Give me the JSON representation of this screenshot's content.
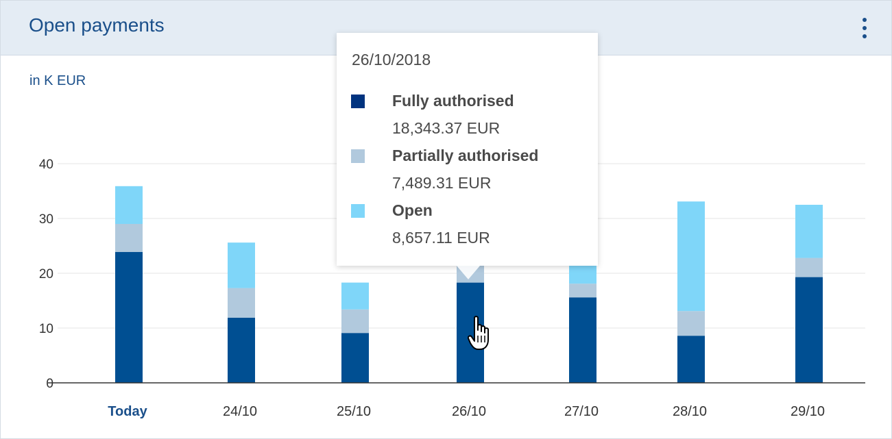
{
  "header": {
    "title": "Open payments",
    "menu_icon": "more-vertical-icon"
  },
  "unit_label": "in K EUR",
  "colors": {
    "fully": "#004f92",
    "partially": "#b1c9dd",
    "open": "#7fd6f9",
    "grid": "#e6e6e6",
    "axis": "#333333",
    "today_label": "#1a4f8a"
  },
  "chart_data": {
    "type": "bar",
    "stacked": true,
    "categories": [
      "Today",
      "24/10",
      "25/10",
      "26/10",
      "27/10",
      "28/10",
      "29/10"
    ],
    "series": [
      {
        "name": "Fully authorised",
        "values": [
          23.9,
          11.9,
          9.1,
          18.3,
          15.6,
          8.6,
          19.3
        ]
      },
      {
        "name": "Partially authorised",
        "values": [
          5.1,
          5.4,
          4.3,
          7.5,
          2.5,
          4.5,
          3.5
        ]
      },
      {
        "name": "Open",
        "values": [
          6.9,
          8.3,
          4.9,
          8.7,
          13.4,
          20.0,
          9.7
        ]
      }
    ],
    "yticks": [
      "0",
      "10",
      "20",
      "30",
      "40"
    ],
    "ylim": [
      0,
      40
    ],
    "grid": true
  },
  "tooltip": {
    "date": "26/10/2018",
    "entries": [
      {
        "name": "Fully authorised",
        "value": "18,343.37 EUR"
      },
      {
        "name": "Partially authorised",
        "value": "7,489.31 EUR"
      },
      {
        "name": "Open",
        "value": "8,657.11 EUR"
      }
    ]
  },
  "cursor_icon": "hand-pointer-icon"
}
